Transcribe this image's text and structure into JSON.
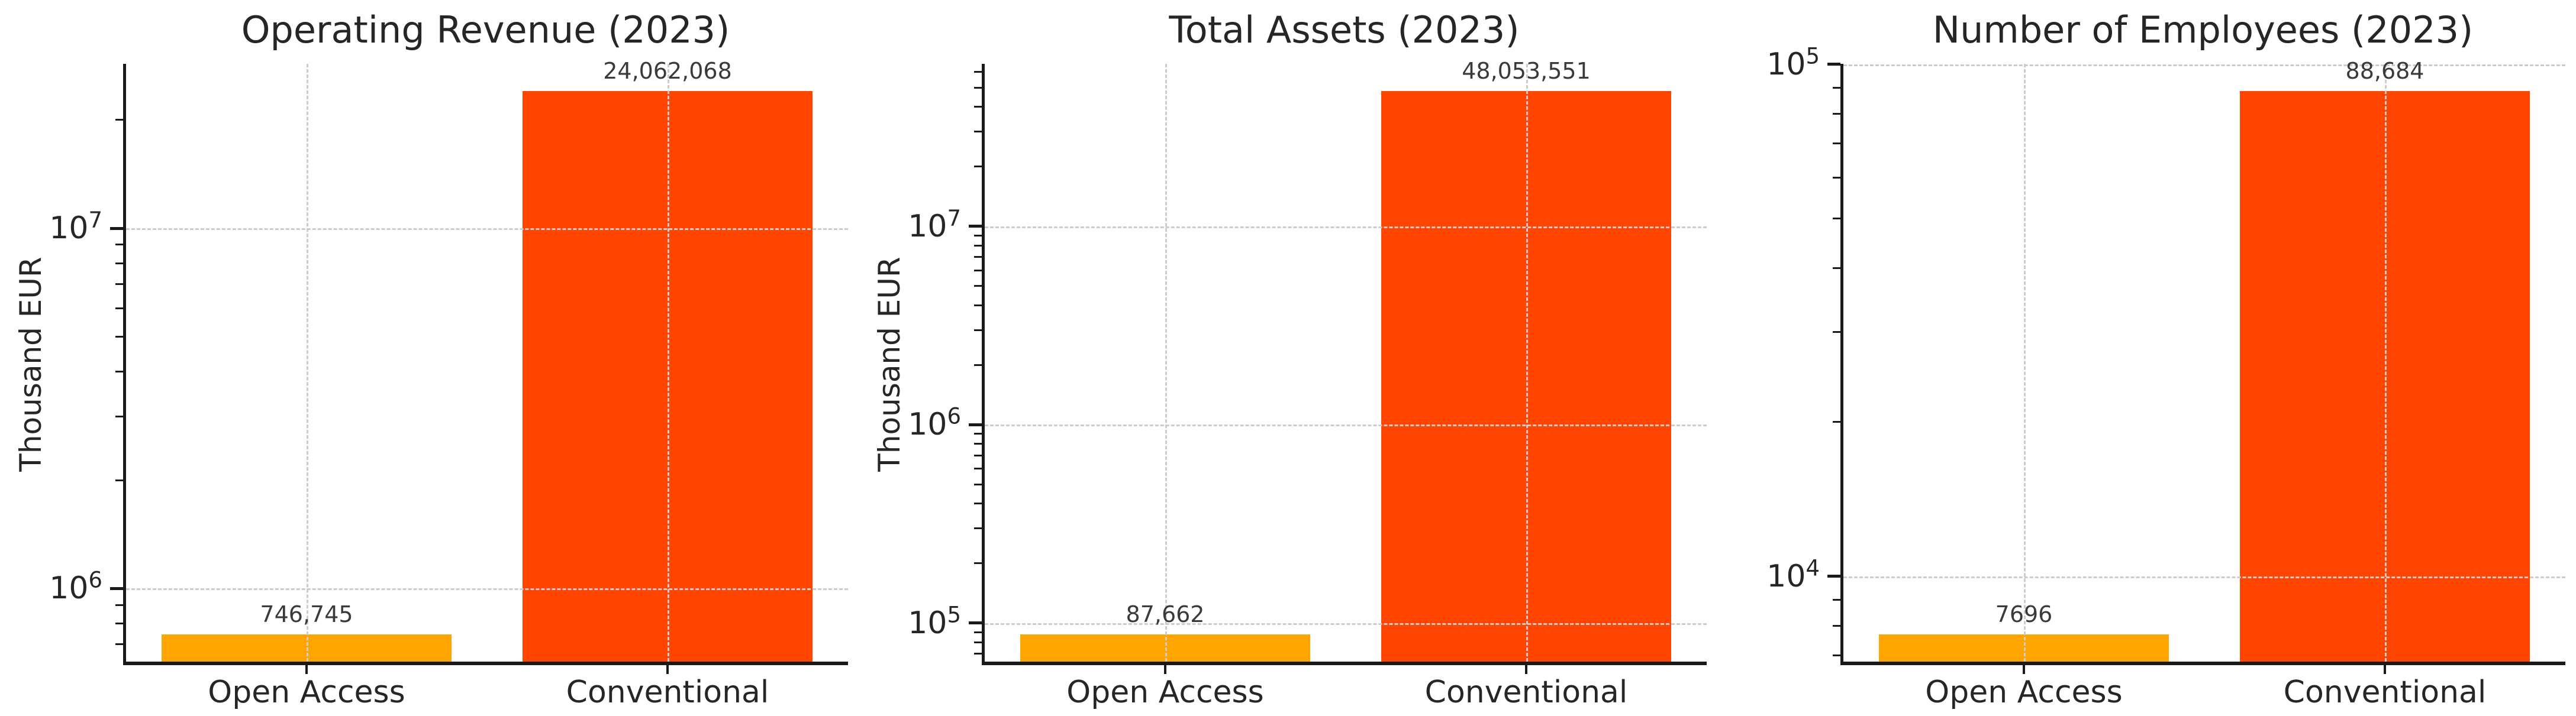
{
  "figure": {
    "background": "#ffffff",
    "grid_color": "#cccccc",
    "spine_color": "#1a1a1a",
    "text_color": "#262626",
    "annotation_color": "#3a3a3a"
  },
  "chart_data": {
    "type": "bar",
    "orientation": "vertical",
    "y_scale": "log",
    "grid": true,
    "legend": false,
    "charts": [
      {
        "title": "Operating Revenue (2023)",
        "ylabel": "Thousand EUR",
        "categories": [
          "Open Access",
          "Conventional"
        ],
        "values": [
          746745,
          24062068
        ],
        "value_labels": [
          "746,745",
          "24,062,068"
        ],
        "bar_colors": [
          "#FFA500",
          "#FF4500"
        ],
        "ylim": [
          627000,
          28600000
        ],
        "ytick_exponents": [
          6,
          7
        ]
      },
      {
        "title": "Total Assets (2023)",
        "ylabel": "Thousand EUR",
        "categories": [
          "Open Access",
          "Conventional"
        ],
        "values": [
          87662,
          48053551
        ],
        "value_labels": [
          "87,662",
          "48,053,551"
        ],
        "bar_colors": [
          "#FFA500",
          "#FF4500"
        ],
        "ylim": [
          64000,
          65900000
        ],
        "ytick_exponents": [
          5,
          6,
          7
        ]
      },
      {
        "title": "Number of Employees (2023)",
        "ylabel": "",
        "categories": [
          "Open Access",
          "Conventional"
        ],
        "values": [
          7696,
          88684
        ],
        "value_labels": [
          "7696",
          "88,684"
        ],
        "bar_colors": [
          "#FFA500",
          "#FF4500"
        ],
        "ylim": [
          6810,
          100200
        ],
        "ytick_exponents": [
          4,
          5
        ]
      }
    ]
  }
}
